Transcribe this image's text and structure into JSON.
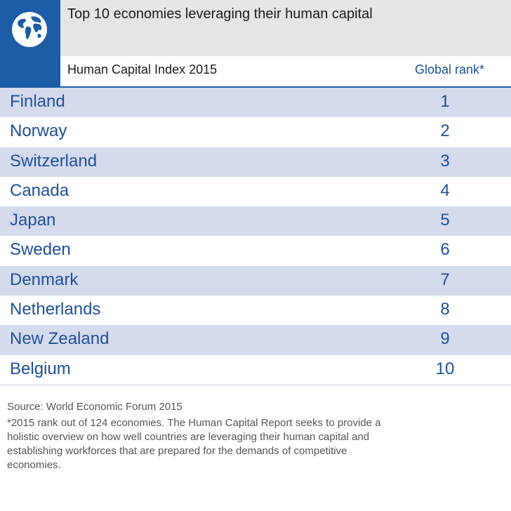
{
  "header": {
    "title": "Top 10 economies leveraging their human capital",
    "logo_icon": "globe-icon",
    "accent_color": "#1d5ca6"
  },
  "table": {
    "label": "Human Capital Index 2015",
    "rank_header": "Global rank*"
  },
  "chart_data": {
    "type": "table",
    "title": "Top 10 economies leveraging their human capital",
    "columns": [
      "Human Capital Index 2015",
      "Global rank*"
    ],
    "rows": [
      {
        "country": "Finland",
        "rank": "1"
      },
      {
        "country": "Norway",
        "rank": "2"
      },
      {
        "country": "Switzerland",
        "rank": "3"
      },
      {
        "country": "Canada",
        "rank": "4"
      },
      {
        "country": "Japan",
        "rank": "5"
      },
      {
        "country": "Sweden",
        "rank": "6"
      },
      {
        "country": "Denmark",
        "rank": "7"
      },
      {
        "country": "Netherlands",
        "rank": "8"
      },
      {
        "country": "New Zealand",
        "rank": "9"
      },
      {
        "country": "Belgium",
        "rank": "10"
      }
    ]
  },
  "footer": {
    "source": "Source: World Economic Forum 2015",
    "note": "*2015 rank out of 124 economies. The Human Capital Report seeks to provide a holistic overview on how well countries are leveraging their human capital and establishing workforces that are prepared for the demands of competitive economies."
  }
}
